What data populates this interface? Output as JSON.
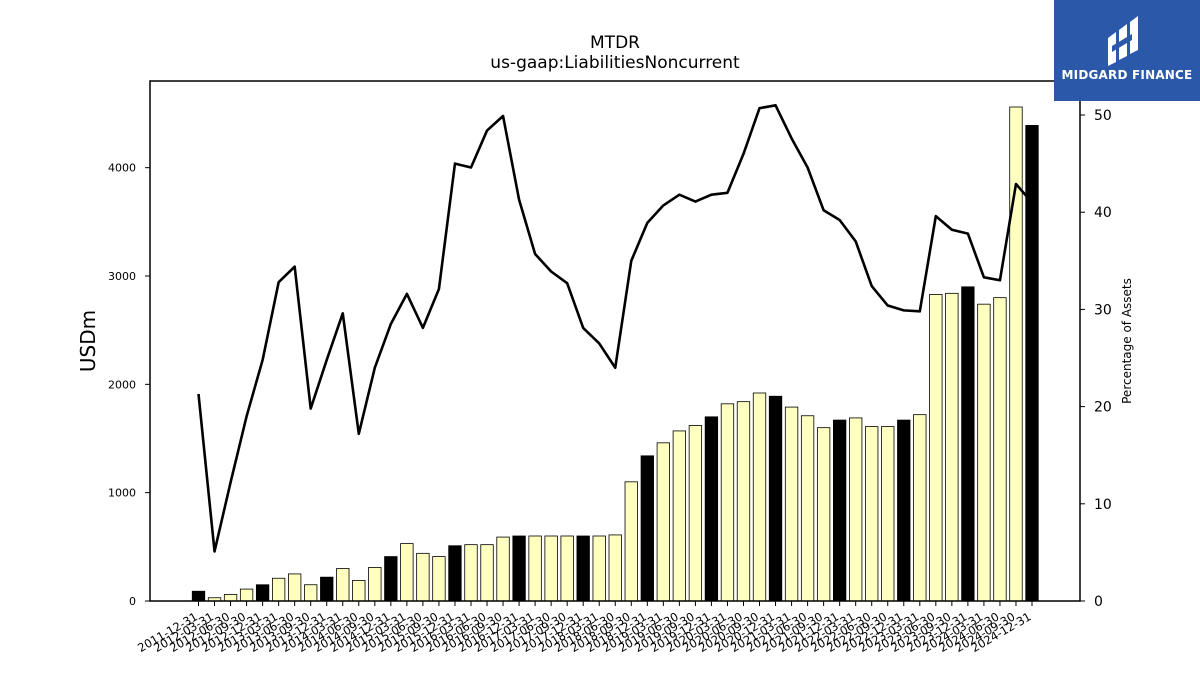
{
  "logo": {
    "text": "MIDGARD FINANCE",
    "background": "#2b58a8",
    "icon": "midgard-logo-icon"
  },
  "chart_data": {
    "type": "bar",
    "title": "MTDR",
    "subtitle": "us-gaap:LiabilitiesNoncurrent",
    "ylabel": "USDm",
    "y2label": "Percentage of Assets",
    "ylim": [
      0,
      4800
    ],
    "y2lim": [
      0,
      53.5
    ],
    "yticks": [
      "0",
      "1000",
      "2000",
      "3000",
      "4000"
    ],
    "y2ticks": [
      "0",
      "10",
      "20",
      "30",
      "40",
      "50"
    ],
    "bar_fill_colors": {
      "annual": "#000000",
      "quarter": "#ffffc0"
    },
    "line_color": "#000000",
    "categories": [
      "2011-12-31",
      "2012-03-31",
      "2012-06-30",
      "2012-09-30",
      "2012-12-31",
      "2013-03-31",
      "2013-06-30",
      "2013-09-30",
      "2013-12-31",
      "2014-03-31",
      "2014-06-30",
      "2014-09-30",
      "2014-12-31",
      "2015-03-31",
      "2015-06-30",
      "2015-09-30",
      "2015-12-31",
      "2016-03-31",
      "2016-06-30",
      "2016-09-30",
      "2016-12-31",
      "2017-03-31",
      "2017-06-30",
      "2017-09-30",
      "2017-12-31",
      "2018-03-31",
      "2018-06-30",
      "2018-09-30",
      "2018-12-31",
      "2019-03-31",
      "2019-06-30",
      "2019-09-30",
      "2019-12-31",
      "2020-03-31",
      "2020-06-30",
      "2020-09-30",
      "2020-12-31",
      "2021-03-31",
      "2021-06-30",
      "2021-09-30",
      "2021-12-31",
      "2022-03-31",
      "2022-06-30",
      "2022-09-30",
      "2022-12-31",
      "2023-03-31",
      "2023-06-30",
      "2023-09-30",
      "2023-12-31",
      "2024-03-31",
      "2024-06-30",
      "2024-09-30",
      "2024-12-31"
    ],
    "series": [
      {
        "values": [
          90,
          30,
          60,
          110,
          150,
          210,
          250,
          150,
          220,
          300,
          190,
          310,
          410,
          530,
          440,
          410,
          510,
          520,
          520,
          590,
          600,
          600,
          600,
          600,
          600,
          600,
          610,
          1100,
          1340,
          1460,
          1570,
          1620,
          1700,
          1820,
          1840,
          1920,
          1890,
          1790,
          1710,
          1600,
          1670,
          1690,
          1610,
          1610,
          1670,
          1720,
          2830,
          2840,
          2900,
          2740,
          2800,
          4560,
          4390
        ],
        "annual": [
          true,
          false,
          false,
          false,
          true,
          false,
          false,
          false,
          true,
          false,
          false,
          false,
          true,
          false,
          false,
          false,
          true,
          false,
          false,
          false,
          true,
          false,
          false,
          false,
          true,
          false,
          false,
          false,
          true,
          false,
          false,
          false,
          true,
          false,
          false,
          false,
          true,
          false,
          false,
          false,
          true,
          false,
          false,
          false,
          true,
          false,
          false,
          false,
          true,
          false,
          false,
          false,
          true
        ]
      },
      {
        "axis": "right",
        "type": "line",
        "values": [
          21.3,
          5.1,
          12.2,
          19.0,
          24.8,
          32.8,
          34.4,
          19.8,
          24.8,
          29.6,
          17.2,
          24.0,
          28.5,
          31.6,
          28.1,
          32.1,
          45.0,
          44.6,
          48.4,
          49.9,
          41.3,
          35.7,
          33.9,
          32.7,
          28.1,
          26.5,
          24.0,
          35.0,
          38.9,
          40.7,
          41.8,
          41.1,
          41.8,
          42.0,
          46.0,
          50.7,
          51.0,
          47.6,
          44.6,
          40.2,
          39.2,
          37.0,
          32.4,
          30.4,
          29.9,
          29.8,
          39.6,
          38.2,
          37.8,
          33.3,
          33.0,
          42.9,
          41.0
        ]
      }
    ]
  }
}
